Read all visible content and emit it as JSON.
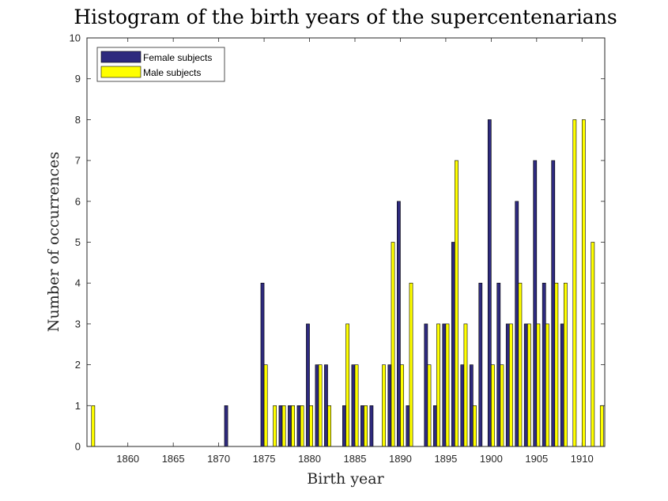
{
  "chart_data": {
    "type": "bar",
    "title": "Histogram of the birth years of the supercentenarians",
    "xlabel": "Birth year",
    "ylabel": "Number of occurrences",
    "xlim": [
      1855.5,
      1912.5
    ],
    "ylim": [
      0,
      10
    ],
    "xticks": [
      1860,
      1865,
      1870,
      1875,
      1880,
      1885,
      1890,
      1895,
      1900,
      1905,
      1910
    ],
    "yticks": [
      0,
      1,
      2,
      3,
      4,
      5,
      6,
      7,
      8,
      9,
      10
    ],
    "grid": false,
    "legend_position": "top-left",
    "x": [
      1856,
      1857,
      1858,
      1859,
      1860,
      1861,
      1862,
      1863,
      1864,
      1865,
      1866,
      1867,
      1868,
      1869,
      1870,
      1871,
      1872,
      1873,
      1874,
      1875,
      1876,
      1877,
      1878,
      1879,
      1880,
      1881,
      1882,
      1883,
      1884,
      1885,
      1886,
      1887,
      1888,
      1889,
      1890,
      1891,
      1892,
      1893,
      1894,
      1895,
      1896,
      1897,
      1898,
      1899,
      1900,
      1901,
      1902,
      1903,
      1904,
      1905,
      1906,
      1907,
      1908,
      1909,
      1910,
      1911,
      1912
    ],
    "series": [
      {
        "name": "Female subjects",
        "color": "#2e2a7e",
        "values": [
          0,
          0,
          0,
          0,
          0,
          0,
          0,
          0,
          0,
          0,
          0,
          0,
          0,
          0,
          0,
          1,
          0,
          0,
          0,
          4,
          0,
          1,
          1,
          1,
          3,
          2,
          2,
          0,
          1,
          2,
          1,
          1,
          0,
          2,
          6,
          1,
          0,
          3,
          1,
          3,
          5,
          2,
          2,
          4,
          8,
          4,
          3,
          6,
          3,
          7,
          4,
          7,
          3,
          0,
          0,
          0,
          0
        ]
      },
      {
        "name": "Male subjects",
        "color": "#ffff00",
        "values": [
          1,
          0,
          0,
          0,
          0,
          0,
          0,
          0,
          0,
          0,
          0,
          0,
          0,
          0,
          0,
          0,
          0,
          0,
          0,
          2,
          1,
          1,
          1,
          1,
          1,
          2,
          1,
          0,
          3,
          2,
          1,
          0,
          2,
          5,
          2,
          4,
          0,
          2,
          3,
          3,
          7,
          3,
          1,
          0,
          2,
          2,
          3,
          4,
          3,
          3,
          3,
          4,
          4,
          8,
          8,
          5,
          1
        ]
      }
    ]
  }
}
